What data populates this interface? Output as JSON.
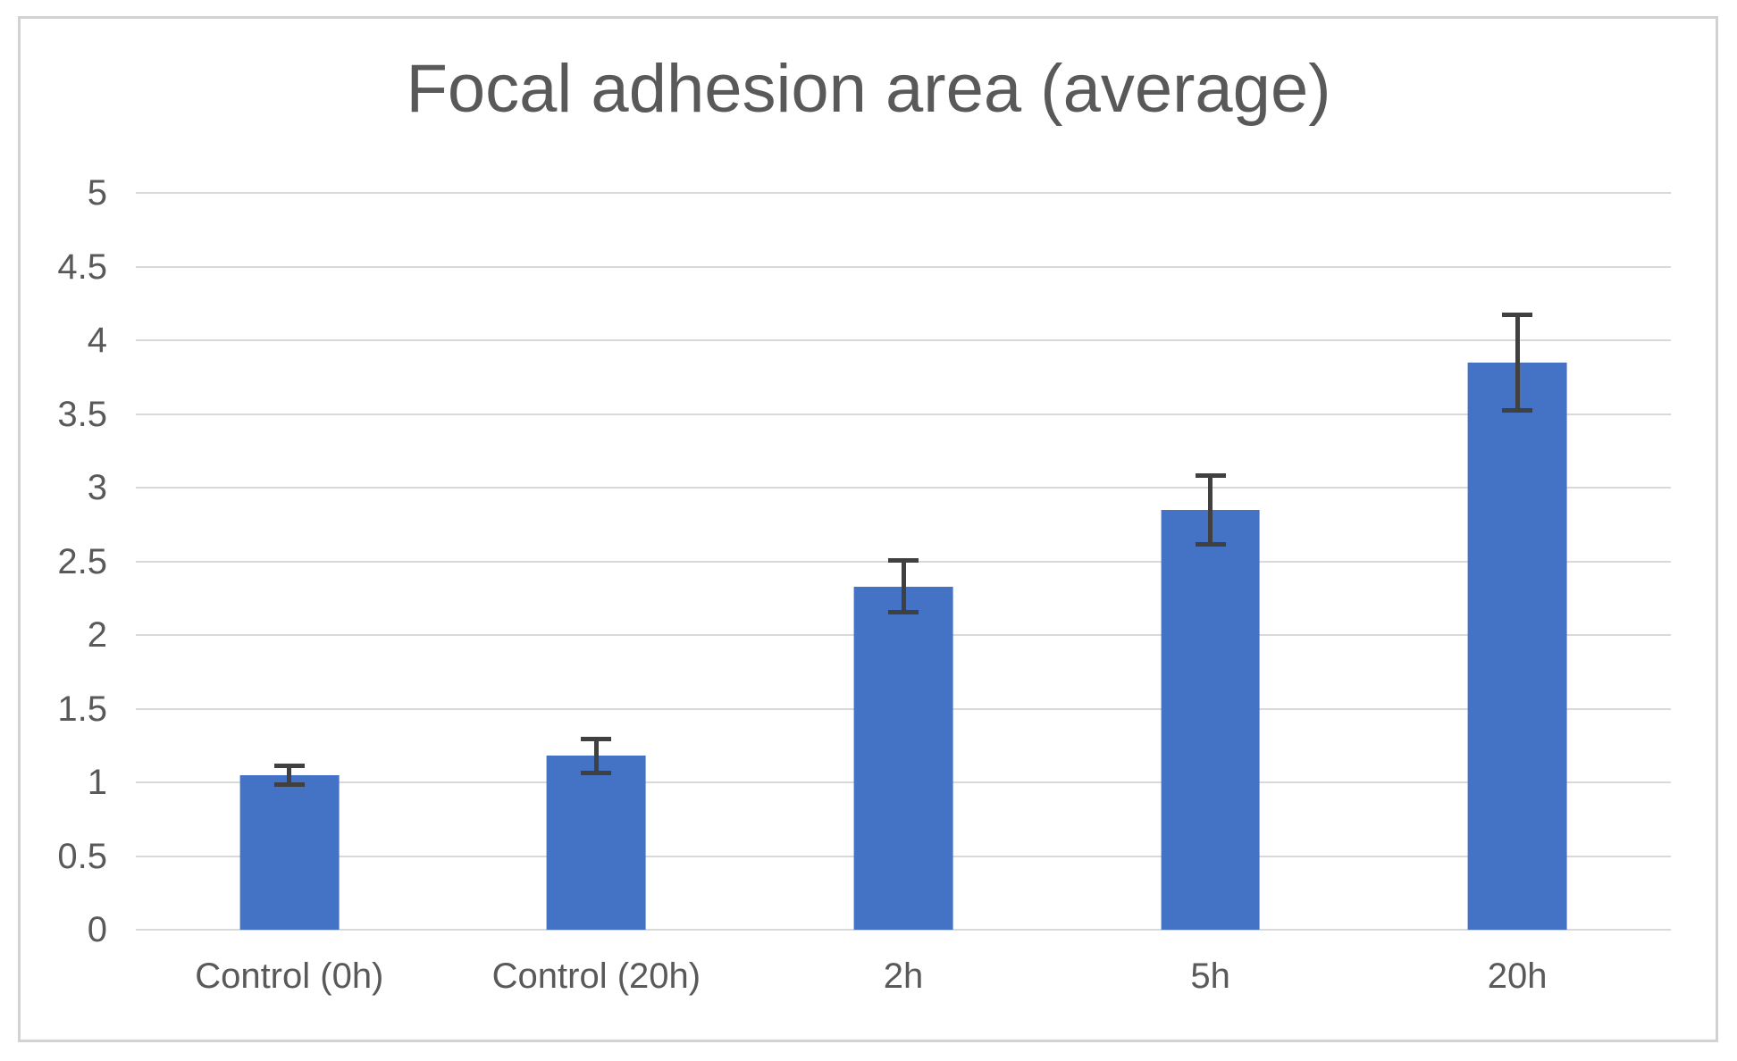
{
  "figure": {
    "background": "#FFFFFF",
    "border_color": "#D2D2D2"
  },
  "chart_data": {
    "type": "bar",
    "title": "Focal adhesion area (average)",
    "categories": [
      "Control (0h)",
      "Control (20h)",
      "2h",
      "5h",
      "20h"
    ],
    "values": [
      1.05,
      1.18,
      2.33,
      2.85,
      3.85
    ],
    "error_bars": [
      0.08,
      0.13,
      0.19,
      0.25,
      0.34
    ],
    "xlabel": "",
    "ylabel": "",
    "ylim": [
      0,
      5
    ],
    "ytick_labels": [
      "0",
      "0.5",
      "1",
      "1.5",
      "2",
      "2.5",
      "3",
      "3.5",
      "4",
      "4.5",
      "5"
    ],
    "grid": true,
    "legend": false,
    "colors": {
      "bar": "#4472C4",
      "gridline": "#D9D9D9",
      "text": "#595959",
      "error_bar": "#404040"
    }
  }
}
